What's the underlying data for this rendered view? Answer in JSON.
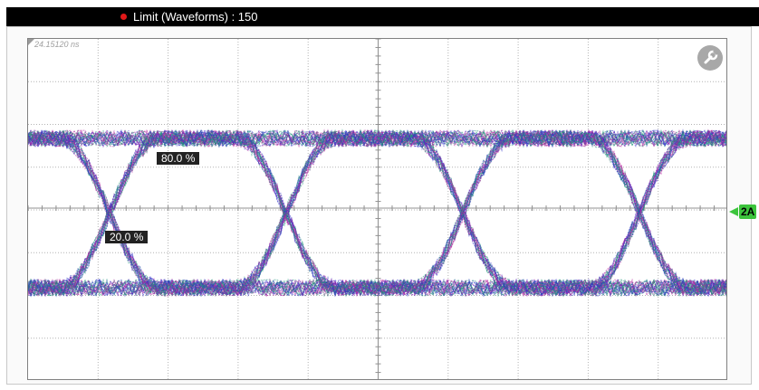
{
  "title_bar": {
    "status_text": "Limit (Waveforms) : 150",
    "status_color": "#e01818",
    "indicator_icon": "red-dot-icon"
  },
  "scope": {
    "time_label": "24.15120 ns",
    "marker_80": "80.0 %",
    "marker_20": "20.0 %",
    "channel_label": "2A",
    "channel_color": "#3cc43c",
    "settings_icon": "wrench-icon",
    "trace_colors": [
      "#3232c8",
      "#b428a0",
      "#1e9678"
    ]
  }
}
